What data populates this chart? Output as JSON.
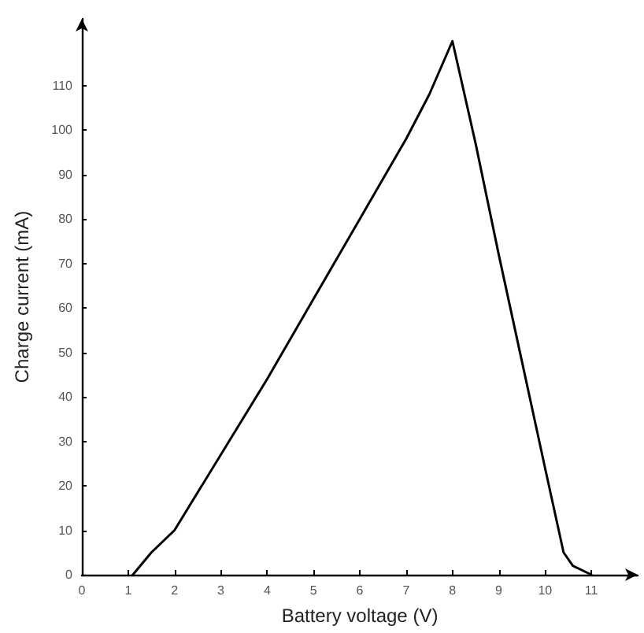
{
  "chart_data": {
    "type": "line",
    "xlabel": "Battery voltage (V)",
    "ylabel": "Charge current (mA)",
    "x": [
      1.1,
      1.5,
      2,
      3,
      4,
      5,
      6,
      7,
      7.5,
      8,
      8.5,
      9,
      9.5,
      10,
      10.4,
      10.6,
      11
    ],
    "series": [
      {
        "color": "#000000",
        "values": [
          0,
          5,
          10,
          27,
          44,
          62,
          80,
          98,
          108,
          120,
          97,
          72,
          48,
          24,
          5,
          2,
          0
        ]
      }
    ],
    "xlim": [
      0,
      12
    ],
    "xticks": [
      0,
      1,
      2,
      3,
      4,
      5,
      6,
      7,
      8,
      9,
      10,
      11
    ],
    "ylim": [
      0,
      125
    ],
    "yticks": [
      0,
      10,
      20,
      30,
      40,
      50,
      60,
      70,
      80,
      90,
      100,
      110
    ],
    "grid": false,
    "marker": "none",
    "line_style": "solid"
  }
}
